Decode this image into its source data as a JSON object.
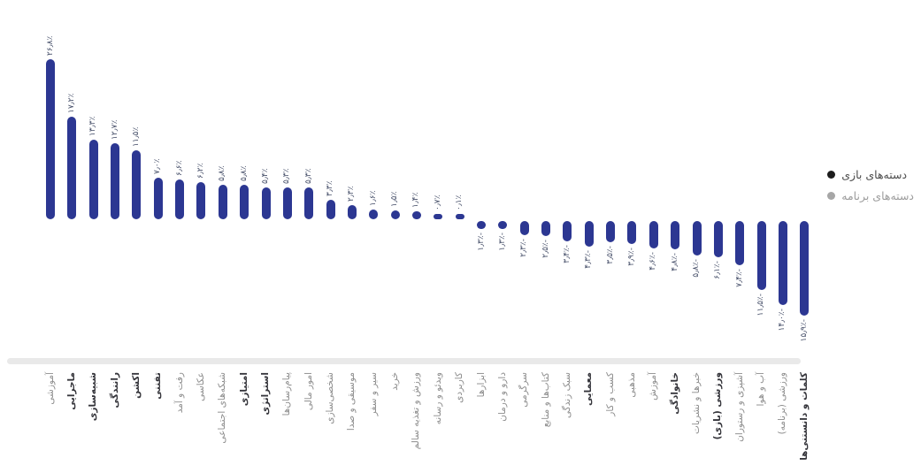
{
  "chart_data": {
    "type": "bar",
    "title": "",
    "xlabel": "",
    "ylabel": "",
    "ylim": [
      -15.9,
      26.8
    ],
    "grid": false,
    "legend_position": "right",
    "bar_color": "#2c3792",
    "value_label_color": "#454e68",
    "app_label_color": "#8d8d8d",
    "game_label_color": "#35353b",
    "axis_line_color": "#e9e9e9",
    "legend": [
      {
        "label": "دسته‌های بازی",
        "color": "#1d1d1d",
        "group": "game"
      },
      {
        "label": "دسته‌های برنامه",
        "color": "#a6a6a6",
        "group": "app"
      }
    ],
    "categories": [
      {
        "label": "آموزشی",
        "group": "app"
      },
      {
        "label": "ماجرایی",
        "group": "game"
      },
      {
        "label": "شبیه‌سازی",
        "group": "game"
      },
      {
        "label": "رانندگی",
        "group": "game"
      },
      {
        "label": "اکشن",
        "group": "game"
      },
      {
        "label": "تفننی",
        "group": "game"
      },
      {
        "label": "رفت و آمد",
        "group": "app"
      },
      {
        "label": "عکاسی",
        "group": "app"
      },
      {
        "label": "شبکه‌های اجتماعی",
        "group": "app"
      },
      {
        "label": "امتیازی",
        "group": "game"
      },
      {
        "label": "استراتژی",
        "group": "game"
      },
      {
        "label": "پیام‌رسان‌ها",
        "group": "app"
      },
      {
        "label": "امور مالی",
        "group": "app"
      },
      {
        "label": "شخصی‌سازی",
        "group": "app"
      },
      {
        "label": "موسیقی و صدا",
        "group": "app"
      },
      {
        "label": "سیر و سفر",
        "group": "app"
      },
      {
        "label": "خرید",
        "group": "app"
      },
      {
        "label": "ورزش و تغذیه سالم",
        "group": "app"
      },
      {
        "label": "ویدئو و رسانه",
        "group": "app"
      },
      {
        "label": "کاربردی",
        "group": "app"
      },
      {
        "label": "ابزارها",
        "group": "app"
      },
      {
        "label": "دارو و درمان",
        "group": "app"
      },
      {
        "label": "سرگرمی",
        "group": "app"
      },
      {
        "label": "کتاب‌ها و منابع",
        "group": "app"
      },
      {
        "label": "سبک زندگی",
        "group": "app"
      },
      {
        "label": "معمایی",
        "group": "game"
      },
      {
        "label": "کسب و کار",
        "group": "app"
      },
      {
        "label": "مذهبی",
        "group": "app"
      },
      {
        "label": "آموزش",
        "group": "app"
      },
      {
        "label": "خانوادگی",
        "group": "game"
      },
      {
        "label": "خبرها و نشریات",
        "group": "app"
      },
      {
        "label": "ورزشی (بازی)",
        "group": "game"
      },
      {
        "label": "آشپزی و رستوران",
        "group": "app"
      },
      {
        "label": "آب و هوا",
        "group": "app"
      },
      {
        "label": "ورزشی (برنامه)",
        "group": "app"
      },
      {
        "label": "کلمات و دانستنی‌ها",
        "group": "game"
      }
    ],
    "values": [
      26.8,
      17.2,
      13.3,
      12.7,
      11.5,
      7.0,
      6.6,
      6.2,
      5.8,
      5.8,
      5.4,
      5.3,
      5.3,
      3.3,
      2.3,
      1.6,
      1.5,
      1.4,
      0.7,
      0.1,
      -1.3,
      -1.3,
      -2.3,
      -2.5,
      -3.4,
      -4.3,
      -3.5,
      -3.9,
      -4.6,
      -4.8,
      -5.8,
      -6.1,
      -7.4,
      -11.5,
      -14.0,
      -15.9
    ],
    "value_labels": [
      "۲۶٫۸٪",
      "۱۷٫۲٪",
      "۱۳٫۳٪",
      "۱۲٫۷٪",
      "۱۱٫۵٪",
      "۷٫۰٪",
      "۶٫۶٪",
      "۶٫۲٪",
      "۵٫۸٪",
      "۵٫۸٪",
      "۵٫۴٪",
      "۵٫۳٪",
      "۵٫۳٪",
      "۳٫۳٪",
      "۲٫۳٪",
      "۱٫۶٪",
      "۱٫۵٪",
      "۱٫۴٪",
      "۰٫۷٪",
      "۰٫۱٪",
      "-۱٫۳٪",
      "-۱٫۳٪",
      "-۲٫۳٪",
      "-۲٫۵٪",
      "-۳٫۴٪",
      "-۴٫۳٪",
      "-۳٫۵٪",
      "-۳٫۹٪",
      "-۴٫۶٪",
      "-۴٫۸٪",
      "-۵٫۸٪",
      "-۶٫۱٪",
      "-۷٫۴٪",
      "-۱۱٫۵٪",
      "-۱۴٫۰٪",
      "-۱۵٫۹٪"
    ]
  }
}
